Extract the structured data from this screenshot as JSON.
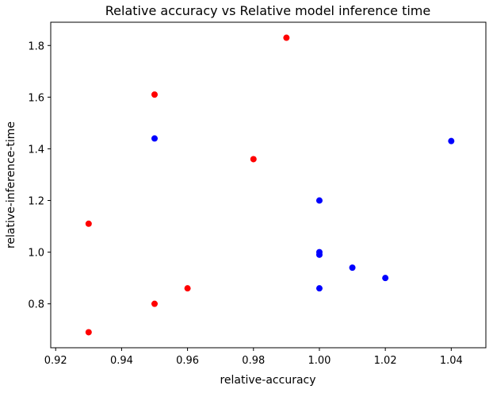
{
  "chart_data": {
    "type": "scatter",
    "title": "Relative accuracy vs Relative model inference time",
    "xlabel": "relative-accuracy",
    "ylabel": "relative-inference-time",
    "xlim": [
      0.9185,
      1.0505
    ],
    "ylim": [
      0.63,
      1.89
    ],
    "xticks": [
      0.92,
      0.94,
      0.96,
      0.98,
      1.0,
      1.02,
      1.04
    ],
    "xtick_labels": [
      "0.92",
      "0.94",
      "0.96",
      "0.98",
      "1.00",
      "1.02",
      "1.04"
    ],
    "yticks": [
      0.8,
      1.0,
      1.2,
      1.4,
      1.6,
      1.8
    ],
    "ytick_labels": [
      "0.8",
      "1.0",
      "1.2",
      "1.4",
      "1.6",
      "1.8"
    ],
    "grid": false,
    "legend": "none",
    "series": [
      {
        "color": "#ff0000",
        "points": [
          {
            "x": 0.93,
            "y": 0.69
          },
          {
            "x": 0.93,
            "y": 1.11
          },
          {
            "x": 0.95,
            "y": 0.8
          },
          {
            "x": 0.95,
            "y": 1.61
          },
          {
            "x": 0.96,
            "y": 0.86
          },
          {
            "x": 0.98,
            "y": 1.36
          },
          {
            "x": 0.99,
            "y": 1.83
          }
        ]
      },
      {
        "color": "#0000ff",
        "points": [
          {
            "x": 0.95,
            "y": 1.44
          },
          {
            "x": 1.0,
            "y": 1.2
          },
          {
            "x": 1.0,
            "y": 1.0
          },
          {
            "x": 1.0,
            "y": 0.99
          },
          {
            "x": 1.0,
            "y": 0.86
          },
          {
            "x": 1.01,
            "y": 0.94
          },
          {
            "x": 1.02,
            "y": 0.9
          },
          {
            "x": 1.04,
            "y": 1.43
          }
        ]
      }
    ]
  }
}
